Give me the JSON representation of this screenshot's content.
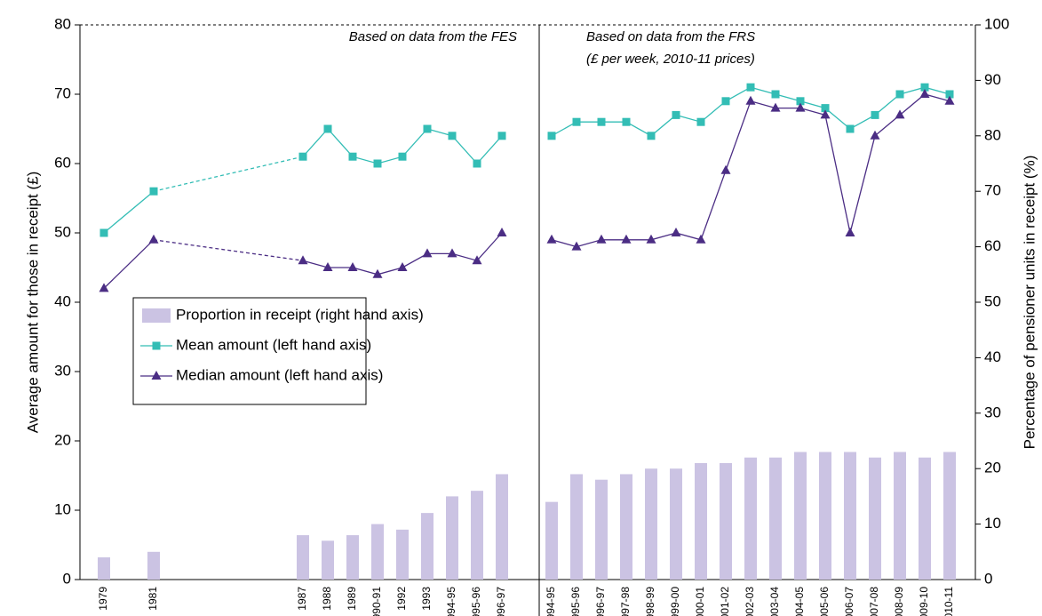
{
  "chart_data": {
    "type": "bar_line",
    "y_label": "Average amount for those in receipt (£)",
    "y2_label": "Percentage of pensioner units in receipt (%)",
    "annotations": [
      {
        "lines": [
          "Based on data from the FES"
        ]
      },
      {
        "lines": [
          "Based on data from the FRS",
          "(£ per week, 2010-11 prices)"
        ]
      }
    ],
    "categories": [
      "1979",
      null,
      "1981",
      null,
      null,
      null,
      null,
      null,
      "1987",
      "1988",
      "1989",
      "1990-91",
      "1992",
      "1993",
      "1994-95",
      "1995-96",
      "1996-97",
      null,
      "1994-95",
      "1995-96",
      "1996-97",
      "1997-98",
      "1998-99",
      "1999-00",
      "2000-01",
      "2001-02",
      "2002-03",
      "2003-04",
      "2004-05",
      "2005-06",
      "2006-07",
      "2007-08",
      "2008-09",
      "2009-10",
      "2010-11"
    ],
    "series": [
      {
        "name": "Proportion in receipt (right hand axis)",
        "type": "bar",
        "axis": "y2",
        "color": "#cbc3e3",
        "values": [
          4,
          null,
          5,
          null,
          null,
          null,
          null,
          null,
          8,
          7,
          8,
          10,
          9,
          12,
          15,
          16,
          19,
          null,
          14,
          19,
          18,
          19,
          20,
          20,
          21,
          21,
          22,
          22,
          23,
          23,
          23,
          22,
          23,
          22,
          23
        ]
      },
      {
        "name": "Mean amount (left hand axis)",
        "type": "line",
        "marker": "square",
        "color": "#33bdb5",
        "values": [
          50,
          null,
          56,
          null,
          null,
          null,
          null,
          null,
          61,
          65,
          61,
          60,
          61,
          65,
          64,
          60,
          64,
          null,
          64,
          66,
          66,
          66,
          64,
          67,
          66,
          69,
          71,
          70,
          69,
          68,
          65,
          67,
          70,
          71,
          70
        ]
      },
      {
        "name": "Median amount (left hand axis)",
        "type": "line",
        "marker": "triangle",
        "color": "#4b2d84",
        "values": [
          42,
          null,
          49,
          null,
          null,
          null,
          null,
          null,
          46,
          45,
          45,
          44,
          45,
          47,
          47,
          46,
          50,
          null,
          49,
          48,
          49,
          49,
          49,
          50,
          49,
          59,
          69,
          68,
          68,
          67,
          50,
          64,
          67,
          70,
          69
        ]
      }
    ],
    "ylim": [
      0,
      80
    ],
    "yticks": [
      0,
      10,
      20,
      30,
      40,
      50,
      60,
      70,
      80
    ],
    "y2lim": [
      0,
      100
    ],
    "y2ticks": [
      0,
      10,
      20,
      30,
      40,
      50,
      60,
      70,
      80,
      90,
      100
    ],
    "grid": false,
    "legend": "left"
  }
}
